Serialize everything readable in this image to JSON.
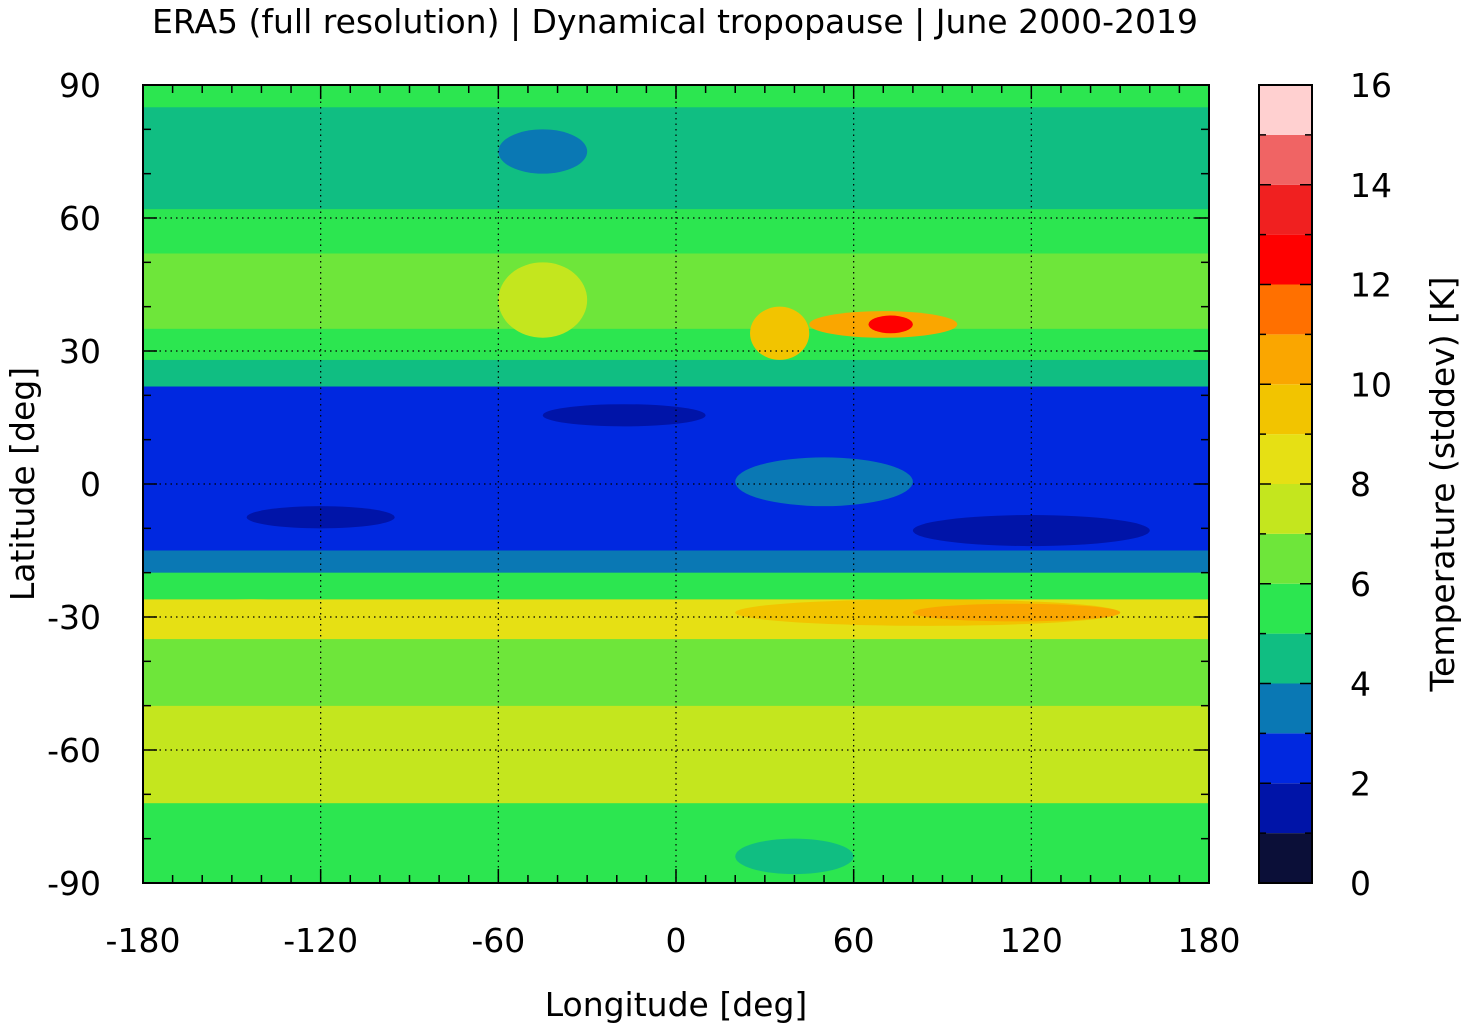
{
  "chart_data": {
    "type": "heatmap",
    "title": "ERA5 (full resolution) | Dynamical tropopause | June 2000-2019",
    "xlabel": "Longitude [deg]",
    "ylabel": "Latitude [deg]",
    "xlim": [
      -180,
      180
    ],
    "ylim": [
      -90,
      90
    ],
    "x_ticks": [
      -180,
      -120,
      -60,
      0,
      60,
      120,
      180
    ],
    "y_ticks": [
      90,
      60,
      30,
      0,
      -30,
      -60,
      -90
    ],
    "grid": true,
    "colorbar": {
      "label": "Temperature (stddev) [K]",
      "range": [
        0,
        16
      ],
      "ticks": [
        0,
        2,
        4,
        6,
        8,
        10,
        12,
        14,
        16
      ],
      "levels": [
        0,
        1,
        2,
        3,
        4,
        5,
        6,
        7,
        8,
        9,
        10,
        11,
        12,
        13,
        14,
        15,
        16
      ],
      "colors": [
        "#0b0f38",
        "#0014a8",
        "#0028e0",
        "#0a78b4",
        "#10be82",
        "#2ce650",
        "#6ee63a",
        "#c4e61e",
        "#e6e014",
        "#f2c400",
        "#faa600",
        "#ff7000",
        "#ff0000",
        "#f02020",
        "#f06464",
        "#ffd0d0"
      ]
    },
    "bands": [
      {
        "lat": [
          -90,
          -72
        ],
        "value": 5.5
      },
      {
        "lat": [
          -72,
          -50
        ],
        "value": 7.5
      },
      {
        "lat": [
          -50,
          -35
        ],
        "value": 6.5
      },
      {
        "lat": [
          -35,
          -26
        ],
        "value": 8.5
      },
      {
        "lat": [
          -26,
          -20
        ],
        "value": 5.5
      },
      {
        "lat": [
          -20,
          -15
        ],
        "value": 3.5
      },
      {
        "lat": [
          -15,
          22
        ],
        "value": 2.5
      },
      {
        "lat": [
          22,
          28
        ],
        "value": 4.5
      },
      {
        "lat": [
          28,
          35
        ],
        "value": 5.5
      },
      {
        "lat": [
          35,
          52
        ],
        "value": 6.5
      },
      {
        "lat": [
          52,
          62
        ],
        "value": 5.5
      },
      {
        "lat": [
          62,
          85
        ],
        "value": 4.5
      },
      {
        "lat": [
          85,
          90
        ],
        "value": 5.5
      }
    ],
    "features": [
      {
        "lon": [
          -172,
          -115
        ],
        "lat": [
          -26,
          -31
        ],
        "value": 8.5
      },
      {
        "lon": [
          25,
          45
        ],
        "lat": [
          28,
          40
        ],
        "value": 9.5
      },
      {
        "lon": [
          45,
          95
        ],
        "lat": [
          33,
          39
        ],
        "value": 10.5
      },
      {
        "lon": [
          65,
          80
        ],
        "lat": [
          34,
          38
        ],
        "value": 12.5
      },
      {
        "lon": [
          20,
          150
        ],
        "lat": [
          -26,
          -32
        ],
        "value": 9.5
      },
      {
        "lon": [
          80,
          150
        ],
        "lat": [
          -27,
          -31
        ],
        "value": 10.5
      },
      {
        "lon": [
          -145,
          -95
        ],
        "lat": [
          -5,
          -10
        ],
        "value": 1.5
      },
      {
        "lon": [
          80,
          160
        ],
        "lat": [
          -7,
          -14
        ],
        "value": 1.5
      },
      {
        "lon": [
          -45,
          10
        ],
        "lat": [
          13,
          18
        ],
        "value": 1.5
      },
      {
        "lon": [
          20,
          80
        ],
        "lat": [
          -5,
          6
        ],
        "value": 3.5
      },
      {
        "lon": [
          -60,
          -30
        ],
        "lat": [
          70,
          80
        ],
        "value": 3.5
      },
      {
        "lon": [
          -60,
          -30
        ],
        "lat": [
          33,
          50
        ],
        "value": 7.5
      },
      {
        "lon": [
          20,
          60
        ],
        "lat": [
          -80,
          -88
        ],
        "value": 4.5
      }
    ]
  }
}
